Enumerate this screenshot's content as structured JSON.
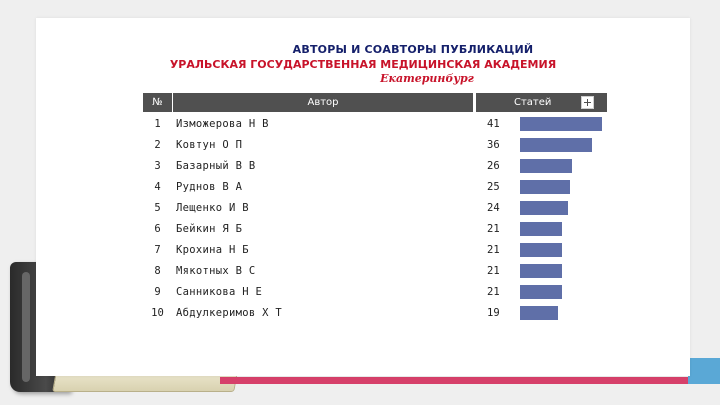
{
  "slide": {
    "title_line1": "АВТОРЫ И СОАВТОРЫ ПУБЛИКАЦИЙ",
    "title_line2": "УРАЛЬСКАЯ ГОСУДАРСТВЕННАЯ МЕДИЦИНСКАЯ АКАДЕМИЯ",
    "title_line3": "Екатеринбург"
  },
  "table": {
    "headers": {
      "num": "№",
      "author": "Автор",
      "count": "Статей"
    },
    "bar_color": "#5f6fa8",
    "max_count": 41,
    "rows": [
      {
        "num": "1",
        "author": "Изможерова Н В",
        "count": 41
      },
      {
        "num": "2",
        "author": "Ковтун О П",
        "count": 36
      },
      {
        "num": "3",
        "author": "Базарный В В",
        "count": 26
      },
      {
        "num": "4",
        "author": "Руднов В А",
        "count": 25
      },
      {
        "num": "5",
        "author": "Лещенко И В",
        "count": 24
      },
      {
        "num": "6",
        "author": "Бейкин Я Б",
        "count": 21
      },
      {
        "num": "7",
        "author": "Крохина Н Б",
        "count": 21
      },
      {
        "num": "8",
        "author": "Мякотных В С",
        "count": 21
      },
      {
        "num": "9",
        "author": "Санникова Н Е",
        "count": 21
      },
      {
        "num": "10",
        "author": "Абдулкеримов Х Т",
        "count": 19
      }
    ]
  },
  "colors": {
    "header_bg": "#505050",
    "title_blue": "#15206b",
    "title_red": "#c8132a",
    "ribbon": "#d6406a"
  }
}
